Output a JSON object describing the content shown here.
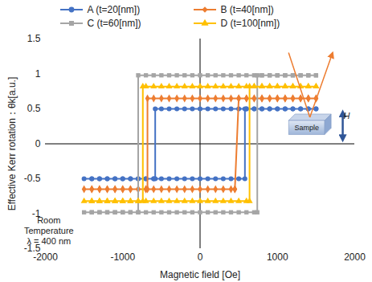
{
  "chart_data": {
    "type": "line",
    "x_label": "Magnetic field [Oe]",
    "y_label": "Effective Kerr rotation：θk[a.u.]",
    "xlim": [
      -2000,
      2000
    ],
    "xticks": [
      -2000,
      -1000,
      0,
      1000,
      2000
    ],
    "ylim": [
      -1.5,
      1.5
    ],
    "yticks": [
      -1.5,
      -1,
      -0.5,
      0,
      0.5,
      1,
      1.5
    ],
    "grid": false,
    "legend": "top",
    "annotations": {
      "conditions": [
        "Room",
        "Temperature",
        "λ = 400 nm"
      ],
      "inset_sample": "Sample",
      "inset_field": "H"
    },
    "series": [
      {
        "name": "A (t=20[nm])",
        "color": "#4472c4",
        "marker": "circle",
        "x": [
          1500,
          1400,
          1300,
          1200,
          1100,
          1000,
          900,
          800,
          700,
          600,
          500,
          400,
          300,
          200,
          100,
          0,
          -100,
          -200,
          -300,
          -400,
          -500,
          -580,
          -580,
          -600,
          -700,
          -800,
          -900,
          -1000,
          -1100,
          -1200,
          -1300,
          -1400,
          -1500,
          -1400,
          -1300,
          -1200,
          -1100,
          -1000,
          -900,
          -800,
          -700,
          -600,
          -500,
          -400,
          -300,
          -200,
          -100,
          0,
          100,
          200,
          300,
          400,
          500,
          580,
          580,
          600,
          700,
          800,
          900,
          1000,
          1100,
          1200,
          1300,
          1400,
          1500
        ],
        "values": [
          0.5,
          0.5,
          0.5,
          0.5,
          0.5,
          0.5,
          0.5,
          0.5,
          0.5,
          0.5,
          0.5,
          0.5,
          0.5,
          0.5,
          0.5,
          0.5,
          0.5,
          0.5,
          0.5,
          0.5,
          0.5,
          0.5,
          -0.5,
          -0.5,
          -0.5,
          -0.5,
          -0.5,
          -0.5,
          -0.5,
          -0.5,
          -0.5,
          -0.5,
          -0.5,
          -0.5,
          -0.5,
          -0.5,
          -0.5,
          -0.5,
          -0.5,
          -0.5,
          -0.5,
          -0.5,
          -0.5,
          -0.5,
          -0.5,
          -0.5,
          -0.5,
          -0.5,
          -0.5,
          -0.5,
          -0.5,
          -0.5,
          -0.5,
          -0.5,
          0.5,
          0.5,
          0.5,
          0.5,
          0.5,
          0.5,
          0.5,
          0.5,
          0.5,
          0.5,
          0.5
        ]
      },
      {
        "name": "B (t=40[nm])",
        "color": "#ed7d31",
        "marker": "diamond",
        "x": [
          1500,
          1400,
          1300,
          1200,
          1100,
          1000,
          900,
          800,
          700,
          600,
          500,
          400,
          300,
          200,
          100,
          0,
          -100,
          -200,
          -300,
          -400,
          -500,
          -600,
          -680,
          -680,
          -700,
          -800,
          -900,
          -1000,
          -1100,
          -1200,
          -1300,
          -1400,
          -1500,
          -1400,
          -1300,
          -1200,
          -1100,
          -1000,
          -900,
          -800,
          -700,
          -600,
          -500,
          -400,
          -300,
          -200,
          -100,
          0,
          100,
          200,
          300,
          400,
          450,
          450,
          500,
          600,
          700,
          800,
          900,
          1000,
          1100,
          1200,
          1300,
          1400,
          1500
        ],
        "values": [
          0.65,
          0.65,
          0.65,
          0.65,
          0.65,
          0.65,
          0.65,
          0.65,
          0.65,
          0.65,
          0.65,
          0.65,
          0.65,
          0.65,
          0.65,
          0.65,
          0.65,
          0.65,
          0.65,
          0.65,
          0.65,
          0.65,
          0.65,
          -0.65,
          -0.65,
          -0.65,
          -0.65,
          -0.65,
          -0.65,
          -0.65,
          -0.65,
          -0.65,
          -0.65,
          -0.65,
          -0.65,
          -0.65,
          -0.65,
          -0.65,
          -0.65,
          -0.65,
          -0.65,
          -0.65,
          -0.65,
          -0.65,
          -0.65,
          -0.65,
          -0.65,
          -0.65,
          -0.65,
          -0.65,
          -0.65,
          -0.65,
          -0.65,
          -0.65,
          0.65,
          0.65,
          0.65,
          0.65,
          0.65,
          0.65,
          0.65,
          0.65,
          0.65,
          0.65,
          0.65
        ]
      },
      {
        "name": "C (t=60[nm])",
        "color": "#a5a5a5",
        "marker": "square",
        "x": [
          1500,
          1400,
          1300,
          1200,
          1100,
          1000,
          900,
          800,
          700,
          600,
          500,
          400,
          300,
          200,
          100,
          0,
          -100,
          -200,
          -300,
          -400,
          -500,
          -600,
          -700,
          -800,
          -800,
          -900,
          -1000,
          -1100,
          -1200,
          -1300,
          -1400,
          -1500,
          -1400,
          -1300,
          -1200,
          -1100,
          -1000,
          -900,
          -800,
          -700,
          -600,
          -500,
          -400,
          -300,
          -200,
          -100,
          0,
          100,
          200,
          300,
          400,
          500,
          600,
          700,
          740,
          740,
          800,
          900,
          1000,
          1100,
          1200,
          1300,
          1400,
          1500
        ],
        "values": [
          0.98,
          0.98,
          0.98,
          0.98,
          0.98,
          0.98,
          0.98,
          0.98,
          0.98,
          0.98,
          0.98,
          0.98,
          0.98,
          0.98,
          0.98,
          0.98,
          0.98,
          0.98,
          0.98,
          0.98,
          0.98,
          0.98,
          0.98,
          0.98,
          -0.98,
          -0.98,
          -0.98,
          -0.98,
          -0.98,
          -0.98,
          -0.98,
          -0.98,
          -0.98,
          -0.98,
          -0.98,
          -0.98,
          -0.98,
          -0.98,
          -0.98,
          -0.98,
          -0.98,
          -0.98,
          -0.98,
          -0.98,
          -0.98,
          -0.98,
          -0.98,
          -0.98,
          -0.98,
          -0.98,
          -0.98,
          -0.98,
          -0.98,
          -0.98,
          -0.98,
          0.98,
          0.98,
          0.98,
          0.98,
          0.98,
          0.98,
          0.98,
          0.98,
          0.98
        ]
      },
      {
        "name": "D (t=100[nm])",
        "color": "#ffc000",
        "marker": "triangle",
        "x": [
          1500,
          1400,
          1300,
          1200,
          1100,
          1000,
          900,
          800,
          700,
          600,
          500,
          400,
          300,
          200,
          100,
          0,
          -100,
          -200,
          -300,
          -400,
          -500,
          -600,
          -700,
          -740,
          -740,
          -800,
          -900,
          -1000,
          -1100,
          -1200,
          -1300,
          -1400,
          -1500,
          -1400,
          -1300,
          -1200,
          -1100,
          -1000,
          -900,
          -800,
          -700,
          -600,
          -500,
          -400,
          -300,
          -200,
          -100,
          0,
          100,
          200,
          300,
          400,
          500,
          600,
          640,
          640,
          700,
          800,
          900,
          1000,
          1100,
          1200,
          1300,
          1400,
          1500
        ],
        "values": [
          0.82,
          0.82,
          0.82,
          0.82,
          0.82,
          0.82,
          0.82,
          0.82,
          0.82,
          0.82,
          0.82,
          0.82,
          0.82,
          0.82,
          0.82,
          0.82,
          0.82,
          0.82,
          0.82,
          0.82,
          0.82,
          0.82,
          0.82,
          0.82,
          -0.82,
          -0.82,
          -0.82,
          -0.82,
          -0.82,
          -0.82,
          -0.82,
          -0.82,
          -0.82,
          -0.82,
          -0.82,
          -0.82,
          -0.82,
          -0.82,
          -0.82,
          -0.82,
          -0.82,
          -0.82,
          -0.82,
          -0.82,
          -0.82,
          -0.82,
          -0.82,
          -0.82,
          -0.82,
          -0.82,
          -0.82,
          -0.82,
          -0.82,
          -0.82,
          -0.82,
          0.82,
          0.82,
          0.82,
          0.82,
          0.82,
          0.82,
          0.82,
          0.82,
          0.82,
          0.82
        ]
      }
    ]
  }
}
